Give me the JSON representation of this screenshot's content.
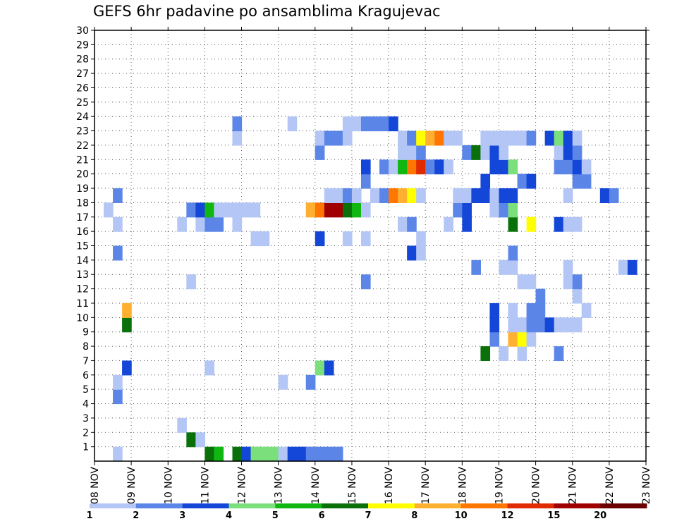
{
  "chart_data": {
    "type": "heatmap",
    "title": "GEFS 6hr padavine po ansamblima Kragujevac",
    "x_ticks": [
      "08 NOV",
      "09 NOV",
      "10 NOV",
      "11 NOV",
      "12 NOV",
      "13 NOV",
      "14 NOV",
      "15 NOV",
      "16 NOV",
      "17 NOV",
      "18 NOV",
      "19 NOV",
      "20 NOV",
      "21 NOV",
      "22 NOV",
      "23 NOV"
    ],
    "y_ticks": [
      "1",
      "2",
      "3",
      "4",
      "5",
      "6",
      "7",
      "8",
      "9",
      "10",
      "11",
      "12",
      "13",
      "14",
      "15",
      "16",
      "17",
      "18",
      "19",
      "20",
      "21",
      "22",
      "23",
      "24",
      "25",
      "26",
      "27",
      "28",
      "29",
      "30"
    ],
    "x_range": [
      "08 NOV",
      "23 NOV"
    ],
    "y_range": [
      0,
      30
    ],
    "time_step_hours": 6,
    "grid": true,
    "legend_position": "bottom",
    "legend_labels": [
      "1",
      "2",
      "3",
      "4",
      "5",
      "6",
      "7",
      "8",
      "10",
      "12",
      "15",
      "20"
    ],
    "legend_colors": [
      "#b3c6f5",
      "#5b86e8",
      "#1446d8",
      "#7be07b",
      "#11b711",
      "#0a700a",
      "#ffff00",
      "#ffb030",
      "#ff7700",
      "#e02a00",
      "#a00000",
      "#6b0000"
    ],
    "cell_value_encoding": "color-bin index (1 = 1-2 mm, 2 = 2-3 mm, ... 12 = >20 mm)",
    "cells": [
      [
        0,
        2,
        1
      ],
      [
        9,
        3,
        6
      ],
      [
        10,
        3,
        8
      ],
      [
        0,
        12,
        6
      ],
      [
        0,
        13,
        5
      ],
      [
        0,
        15,
        6
      ],
      [
        0,
        16,
        3
      ],
      [
        0,
        17,
        4
      ],
      [
        0,
        18,
        4
      ],
      [
        0,
        19,
        4
      ],
      [
        0,
        20,
        1
      ],
      [
        0,
        21,
        3
      ],
      [
        0,
        22,
        3
      ],
      [
        0,
        23,
        2
      ],
      [
        0,
        24,
        2
      ],
      [
        0,
        25,
        2
      ],
      [
        0,
        26,
        2
      ],
      [
        2,
        9,
        1
      ],
      [
        1,
        10,
        6
      ],
      [
        1,
        11,
        1
      ],
      [
        4,
        2,
        2
      ],
      [
        5,
        2,
        1
      ],
      [
        5,
        20,
        1
      ],
      [
        5,
        23,
        2
      ],
      [
        6,
        3,
        3
      ],
      [
        6,
        12,
        1
      ],
      [
        6,
        24,
        4
      ],
      [
        6,
        25,
        3
      ],
      [
        7,
        42,
        6
      ],
      [
        7,
        44,
        1
      ],
      [
        7,
        46,
        1
      ],
      [
        7,
        50,
        2
      ],
      [
        8,
        43,
        2
      ],
      [
        8,
        45,
        8
      ],
      [
        8,
        46,
        7
      ],
      [
        8,
        47,
        1
      ],
      [
        9,
        43,
        3
      ],
      [
        9,
        45,
        1
      ],
      [
        9,
        46,
        1
      ],
      [
        9,
        47,
        2
      ],
      [
        9,
        48,
        2
      ],
      [
        9,
        49,
        3
      ],
      [
        9,
        50,
        1
      ],
      [
        9,
        51,
        1
      ],
      [
        9,
        52,
        1
      ],
      [
        10,
        43,
        3
      ],
      [
        10,
        45,
        1
      ],
      [
        10,
        47,
        2
      ],
      [
        10,
        48,
        2
      ],
      [
        10,
        53,
        1
      ],
      [
        11,
        48,
        2
      ],
      [
        11,
        52,
        1
      ],
      [
        12,
        10,
        1
      ],
      [
        12,
        29,
        2
      ],
      [
        12,
        46,
        1
      ],
      [
        12,
        47,
        1
      ],
      [
        12,
        51,
        1
      ],
      [
        12,
        52,
        2
      ],
      [
        13,
        41,
        2
      ],
      [
        13,
        44,
        1
      ],
      [
        13,
        45,
        1
      ],
      [
        13,
        51,
        1
      ],
      [
        13,
        57,
        1
      ],
      [
        13,
        58,
        3
      ],
      [
        14,
        2,
        2
      ],
      [
        14,
        34,
        3
      ],
      [
        14,
        35,
        1
      ],
      [
        14,
        45,
        2
      ],
      [
        15,
        17,
        1
      ],
      [
        15,
        18,
        1
      ],
      [
        15,
        24,
        3
      ],
      [
        15,
        27,
        1
      ],
      [
        15,
        29,
        1
      ],
      [
        15,
        35,
        1
      ],
      [
        16,
        2,
        1
      ],
      [
        16,
        9,
        1
      ],
      [
        16,
        11,
        1
      ],
      [
        16,
        12,
        2
      ],
      [
        16,
        13,
        2
      ],
      [
        16,
        15,
        1
      ],
      [
        16,
        33,
        1
      ],
      [
        16,
        34,
        2
      ],
      [
        16,
        38,
        1
      ],
      [
        16,
        40,
        3
      ],
      [
        16,
        45,
        6
      ],
      [
        16,
        47,
        7
      ],
      [
        16,
        50,
        3
      ],
      [
        16,
        51,
        1
      ],
      [
        16,
        52,
        1
      ],
      [
        17,
        1,
        1
      ],
      [
        17,
        10,
        2
      ],
      [
        17,
        11,
        3
      ],
      [
        17,
        12,
        5
      ],
      [
        17,
        13,
        1
      ],
      [
        17,
        14,
        1
      ],
      [
        17,
        15,
        1
      ],
      [
        17,
        16,
        1
      ],
      [
        17,
        17,
        1
      ],
      [
        17,
        23,
        8
      ],
      [
        17,
        24,
        9
      ],
      [
        17,
        25,
        11
      ],
      [
        17,
        26,
        11
      ],
      [
        17,
        27,
        6
      ],
      [
        17,
        28,
        5
      ],
      [
        17,
        29,
        1
      ],
      [
        17,
        39,
        2
      ],
      [
        17,
        40,
        3
      ],
      [
        17,
        43,
        1
      ],
      [
        17,
        44,
        2
      ],
      [
        17,
        45,
        4
      ],
      [
        18,
        2,
        2
      ],
      [
        18,
        25,
        1
      ],
      [
        18,
        26,
        1
      ],
      [
        18,
        27,
        2
      ],
      [
        18,
        28,
        1
      ],
      [
        18,
        30,
        1
      ],
      [
        18,
        31,
        2
      ],
      [
        18,
        32,
        9
      ],
      [
        18,
        33,
        8
      ],
      [
        18,
        34,
        7
      ],
      [
        18,
        35,
        1
      ],
      [
        18,
        39,
        1
      ],
      [
        18,
        40,
        1
      ],
      [
        18,
        41,
        3
      ],
      [
        18,
        42,
        3
      ],
      [
        18,
        43,
        1
      ],
      [
        18,
        44,
        3
      ],
      [
        18,
        45,
        3
      ],
      [
        18,
        51,
        1
      ],
      [
        18,
        55,
        3
      ],
      [
        18,
        56,
        2
      ],
      [
        19,
        29,
        2
      ],
      [
        19,
        42,
        3
      ],
      [
        19,
        46,
        2
      ],
      [
        19,
        47,
        3
      ],
      [
        19,
        52,
        2
      ],
      [
        19,
        53,
        2
      ],
      [
        20,
        29,
        3
      ],
      [
        20,
        31,
        2
      ],
      [
        20,
        32,
        1
      ],
      [
        20,
        33,
        5
      ],
      [
        20,
        34,
        9
      ],
      [
        20,
        35,
        10
      ],
      [
        20,
        36,
        2
      ],
      [
        20,
        37,
        3
      ],
      [
        20,
        38,
        1
      ],
      [
        20,
        43,
        3
      ],
      [
        20,
        44,
        3
      ],
      [
        20,
        45,
        4
      ],
      [
        20,
        50,
        2
      ],
      [
        20,
        51,
        2
      ],
      [
        20,
        52,
        3
      ],
      [
        20,
        53,
        1
      ],
      [
        21,
        24,
        2
      ],
      [
        21,
        33,
        1
      ],
      [
        21,
        34,
        1
      ],
      [
        21,
        35,
        2
      ],
      [
        21,
        40,
        2
      ],
      [
        21,
        41,
        6
      ],
      [
        21,
        42,
        1
      ],
      [
        21,
        43,
        3
      ],
      [
        21,
        44,
        1
      ],
      [
        21,
        50,
        1
      ],
      [
        21,
        51,
        3
      ],
      [
        21,
        52,
        2
      ],
      [
        22,
        15,
        1
      ],
      [
        22,
        24,
        1
      ],
      [
        22,
        25,
        2
      ],
      [
        22,
        26,
        2
      ],
      [
        22,
        27,
        1
      ],
      [
        22,
        33,
        1
      ],
      [
        22,
        34,
        2
      ],
      [
        22,
        35,
        7
      ],
      [
        22,
        36,
        8
      ],
      [
        22,
        37,
        9
      ],
      [
        22,
        38,
        1
      ],
      [
        22,
        39,
        1
      ],
      [
        22,
        42,
        1
      ],
      [
        22,
        43,
        1
      ],
      [
        22,
        44,
        1
      ],
      [
        22,
        45,
        1
      ],
      [
        22,
        46,
        1
      ],
      [
        22,
        47,
        2
      ],
      [
        22,
        49,
        3
      ],
      [
        22,
        50,
        4
      ],
      [
        22,
        51,
        3
      ],
      [
        22,
        52,
        1
      ],
      [
        23,
        15,
        2
      ],
      [
        23,
        21,
        1
      ],
      [
        23,
        27,
        1
      ],
      [
        23,
        28,
        1
      ],
      [
        23,
        29,
        2
      ],
      [
        23,
        30,
        2
      ],
      [
        23,
        31,
        2
      ],
      [
        23,
        32,
        3
      ]
    ]
  }
}
